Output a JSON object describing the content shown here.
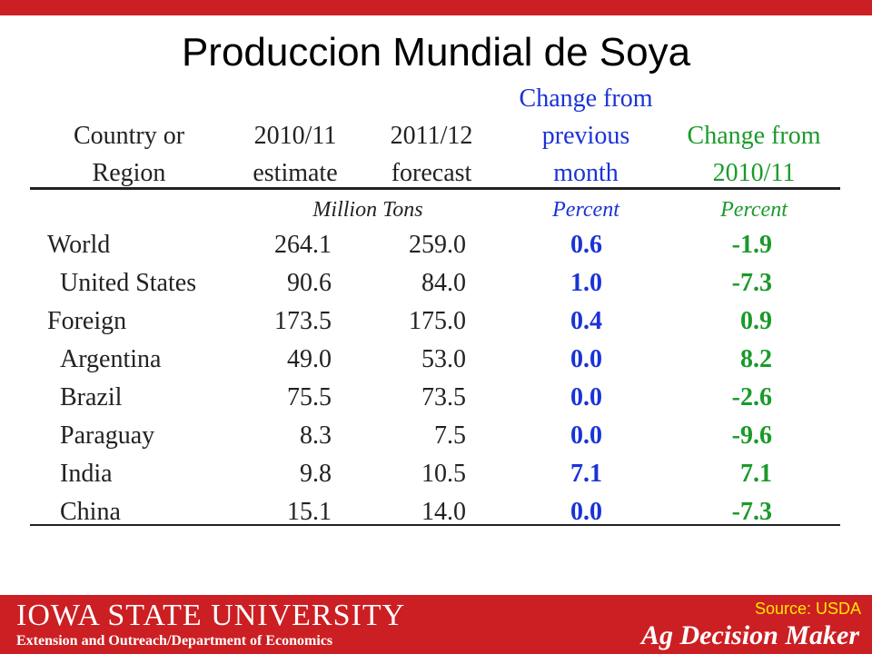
{
  "title": "Produccion Mundial de Soya",
  "headers": {
    "col1": [
      "Country or",
      "Region"
    ],
    "col2": [
      "2010/11",
      "estimate"
    ],
    "col3": [
      "2011/12",
      "forecast"
    ],
    "col4": [
      "Change from",
      "previous",
      "month"
    ],
    "col5": [
      "Change from",
      "2010/11"
    ]
  },
  "units": {
    "tons": "Million Tons",
    "pct1": "Percent",
    "pct2": "Percent"
  },
  "rows": [
    {
      "name": "World",
      "a": "264.1",
      "b": "259.0",
      "c": "0.6",
      "d": "-1.9"
    },
    {
      "name": "United States",
      "a": "90.6",
      "b": "84.0",
      "c": "1.0",
      "d": "-7.3"
    },
    {
      "name": "Foreign",
      "a": "173.5",
      "b": "175.0",
      "c": "0.4",
      "d": "0.9"
    },
    {
      "name": "Argentina",
      "a": "49.0",
      "b": "53.0",
      "c": "0.0",
      "d": "8.2"
    },
    {
      "name": "Brazil",
      "a": "75.5",
      "b": "73.5",
      "c": "0.0",
      "d": "-2.6"
    },
    {
      "name": "Paraguay",
      "a": "8.3",
      "b": "7.5",
      "c": "0.0",
      "d": "-9.6"
    },
    {
      "name": "India",
      "a": "9.8",
      "b": "10.5",
      "c": "7.1",
      "d": "7.1"
    },
    {
      "name": "China",
      "a": "15.1",
      "b": "14.0",
      "c": "0.0",
      "d": "-7.3"
    }
  ],
  "footer": {
    "logo": "IOWA STATE UNIVERSITY",
    "extension": "Extension and Outreach/Department  of Economics",
    "source": "Source: USDA",
    "brand": "Ag Decision Maker"
  },
  "colors": {
    "brand_red": "#cc1f23",
    "blue": "#1a33d6",
    "green": "#1a9a2a",
    "source_yellow": "#ffe800"
  }
}
